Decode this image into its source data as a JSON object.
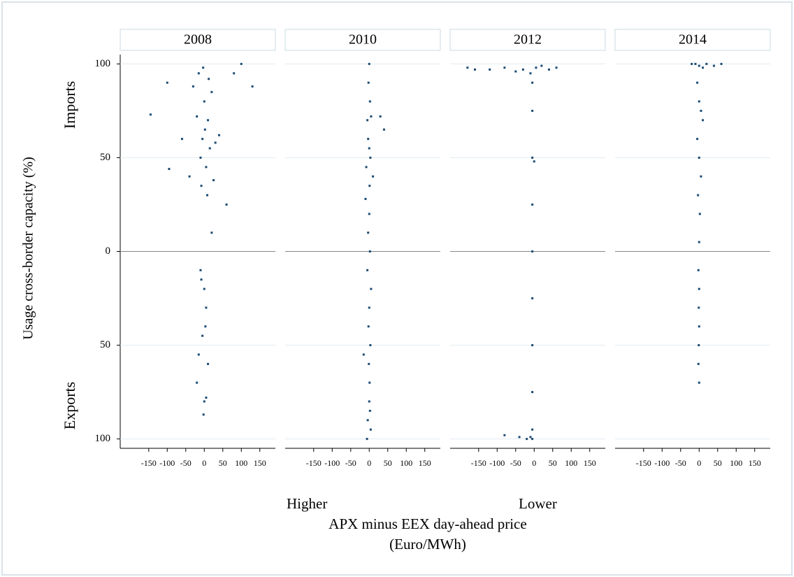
{
  "chart_data": {
    "type": "scatter",
    "y_label": "Usage cross-border capacity (%)",
    "y_top_label": "Imports",
    "y_bottom_label": "Exports",
    "x_left_label": "Higher",
    "x_right_label": "Lower",
    "x_label": "APX minus EEX day-ahead price",
    "x_unit": "(Euro/MWh)",
    "color": "#1b4a72",
    "grid": true,
    "xlim": [
      -227,
      192
    ],
    "ylim": [
      -105,
      105
    ],
    "xticks": [
      -150,
      -100,
      -50,
      0,
      50,
      100,
      150
    ],
    "yticks": [
      {
        "value": 100,
        "label": "100"
      },
      {
        "value": 50,
        "label": "50"
      },
      {
        "value": 0,
        "label": "0"
      },
      {
        "value": -50,
        "label": "50"
      },
      {
        "value": -100,
        "label": "100"
      }
    ],
    "panels": [
      {
        "title": "2008",
        "x": [
          -145,
          -100,
          -95,
          -60,
          -40,
          -30,
          -20,
          -15,
          -10,
          -8,
          -5,
          -3,
          0,
          2,
          5,
          8,
          10,
          12,
          15,
          20,
          25,
          30,
          40,
          60,
          80,
          100,
          130,
          -10,
          0,
          5,
          -5,
          10,
          -20,
          -15,
          0,
          5,
          -2,
          3,
          -8,
          20
        ],
        "y": [
          73,
          90,
          44,
          60,
          40,
          88,
          72,
          95,
          50,
          35,
          60,
          98,
          80,
          65,
          45,
          30,
          70,
          92,
          55,
          85,
          38,
          58,
          62,
          25,
          95,
          100,
          88,
          -10,
          -20,
          -30,
          -45,
          -60,
          -70,
          -55,
          -80,
          -78,
          -87,
          -40,
          -15,
          10
        ]
      },
      {
        "title": "2010",
        "x": [
          0,
          -2,
          2,
          -5,
          5,
          -3,
          3,
          -8,
          30,
          40,
          10,
          -10,
          0,
          -3,
          2,
          -5,
          5,
          0,
          -2,
          3,
          -15,
          -1,
          1,
          0,
          2,
          -4,
          4,
          -6,
          1,
          0
        ],
        "y": [
          100,
          90,
          80,
          70,
          72,
          60,
          50,
          45,
          72,
          65,
          40,
          28,
          20,
          10,
          0,
          -10,
          -20,
          -30,
          -40,
          -50,
          -55,
          -60,
          -70,
          -80,
          -85,
          -90,
          -95,
          -100,
          35,
          55
        ]
      },
      {
        "title": "2012",
        "x": [
          -180,
          -160,
          -120,
          -80,
          -50,
          -30,
          -10,
          -5,
          5,
          20,
          40,
          60,
          -5,
          -5,
          -5,
          -5,
          -5,
          -5,
          -5,
          -5,
          0,
          -80,
          -40,
          -20,
          -10,
          -5
        ],
        "y": [
          98,
          97,
          97,
          98,
          96,
          97,
          95,
          90,
          98,
          99,
          97,
          98,
          75,
          50,
          25,
          0,
          -25,
          -50,
          -75,
          -95,
          48,
          -98,
          -99,
          -100,
          -99,
          -100
        ]
      },
      {
        "title": "2014",
        "x": [
          -20,
          -10,
          0,
          10,
          20,
          40,
          60,
          -5,
          0,
          5,
          10,
          -5,
          0,
          5,
          -3,
          2,
          0,
          -2,
          0,
          -1,
          0,
          -1,
          -2,
          0
        ],
        "y": [
          100,
          100,
          99,
          98,
          100,
          99,
          100,
          90,
          80,
          75,
          70,
          60,
          50,
          40,
          30,
          20,
          5,
          -10,
          -20,
          -30,
          -40,
          -50,
          -60,
          -70
        ]
      }
    ]
  }
}
